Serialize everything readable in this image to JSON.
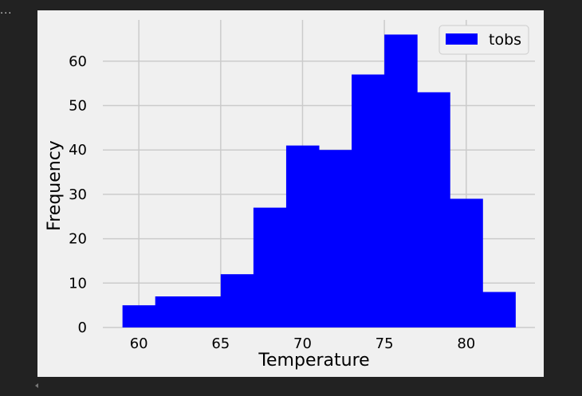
{
  "output_indicator": "...",
  "chart_data": {
    "type": "bar",
    "title": "",
    "xlabel": "Temperature",
    "ylabel": "Frequency",
    "bin_edges": [
      59,
      61,
      63,
      65,
      67,
      69,
      71,
      73,
      75,
      77,
      79,
      81,
      83
    ],
    "values": [
      5,
      7,
      7,
      12,
      27,
      41,
      40,
      57,
      66,
      53,
      29,
      8
    ],
    "series": [
      {
        "name": "tobs",
        "color": "#0000ff"
      }
    ],
    "xlim": [
      57.8,
      84.2
    ],
    "ylim": [
      0,
      69.3
    ],
    "x_ticks": [
      60,
      65,
      70,
      75,
      80
    ],
    "x_tick_labels": [
      "60",
      "65",
      "70",
      "75",
      "80"
    ],
    "y_ticks": [
      0,
      10,
      20,
      30,
      40,
      50,
      60
    ],
    "y_tick_labels": [
      "0",
      "10",
      "20",
      "30",
      "40",
      "50",
      "60"
    ],
    "grid": true,
    "legend": {
      "position": "upper-right",
      "entries": [
        "tobs"
      ]
    },
    "colors": {
      "background": "#f0f0f0",
      "grid": "#cbcbcb",
      "bar": "#0000ff",
      "page": "#222222"
    }
  }
}
